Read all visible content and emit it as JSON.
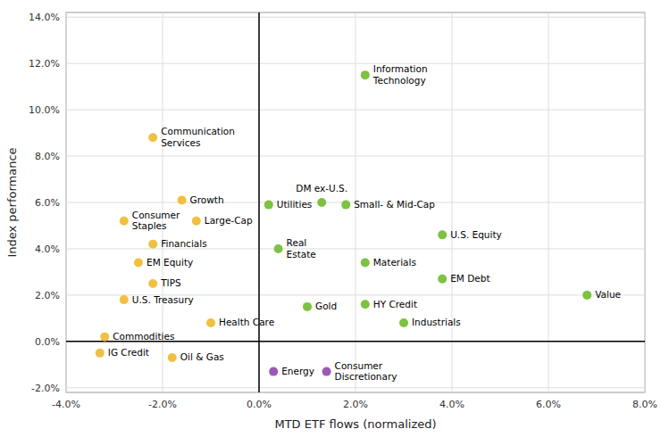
{
  "chart_data": {
    "type": "scatter",
    "xlabel": "MTD ETF flows (normalized)",
    "ylabel": "Index performance",
    "labels": [
      "Information\nTechnology",
      "Communication\nServices",
      "Utilities",
      "Small- & Mid-Cap",
      "Growth",
      "Large-Cap",
      "DM ex-U.S.",
      "Consumer\nStaples",
      "Financials",
      "U.S. Equity",
      "EM Equity",
      "Real\nEstate",
      "Materials",
      "TIPS",
      "U.S. Treasury",
      "EM Debt",
      "Value",
      "Gold",
      "HY Credit",
      "Commodities",
      "Health Care",
      "Industrials",
      "IG Credit",
      "Oil & Gas",
      "Energy",
      "Consumer\nDiscretionary"
    ],
    "x": [
      0.022,
      -0.022,
      0.002,
      0.018,
      -0.016,
      -0.013,
      0.013,
      -0.028,
      -0.022,
      0.038,
      -0.025,
      0.004,
      0.022,
      -0.022,
      -0.028,
      0.038,
      0.068,
      0.01,
      0.022,
      -0.032,
      -0.01,
      0.03,
      -0.033,
      -0.018,
      0.003,
      0.014
    ],
    "values": [
      0.115,
      0.088,
      0.059,
      0.059,
      0.061,
      0.052,
      0.06,
      0.052,
      0.042,
      0.046,
      0.034,
      0.04,
      0.034,
      0.025,
      0.018,
      0.027,
      0.02,
      0.015,
      0.016,
      0.002,
      0.008,
      0.008,
      -0.005,
      -0.007,
      -0.013,
      -0.013
    ],
    "colors": [
      "#7dc242",
      "#f0c040",
      "#7dc242",
      "#7dc242",
      "#f0c040",
      "#f0c040",
      "#7dc242",
      "#f0c040",
      "#f0c040",
      "#7dc242",
      "#f0c040",
      "#7dc242",
      "#7dc242",
      "#f0c040",
      "#f0c040",
      "#7dc242",
      "#7dc242",
      "#7dc242",
      "#7dc242",
      "#f0c040",
      "#f0c040",
      "#7dc242",
      "#f0c040",
      "#f0c040",
      "#9b59b6",
      "#9b59b6"
    ],
    "xlim": [
      -0.04,
      0.08
    ],
    "ylim": [
      -0.022,
      0.142
    ],
    "xticks": [
      {
        "value": -0.04,
        "label": "-4.0%"
      },
      {
        "value": -0.02,
        "label": "-2.0%"
      },
      {
        "value": 0.0,
        "label": "0.0%"
      },
      {
        "value": 0.02,
        "label": "2.0%"
      },
      {
        "value": 0.04,
        "label": "4.0%"
      },
      {
        "value": 0.06,
        "label": "6.0%"
      },
      {
        "value": 0.08,
        "label": "8.0%"
      }
    ],
    "yticks": [
      {
        "value": -0.02,
        "label": "-2.0%"
      },
      {
        "value": 0.0,
        "label": "0.0%"
      },
      {
        "value": 0.02,
        "label": "2.0%"
      },
      {
        "value": 0.04,
        "label": "4.0%"
      },
      {
        "value": 0.06,
        "label": "6.0%"
      },
      {
        "value": 0.08,
        "label": "8.0%"
      },
      {
        "value": 0.1,
        "label": "10.0%"
      },
      {
        "value": 0.12,
        "label": "12.0%"
      },
      {
        "value": 0.14,
        "label": "14.0%"
      }
    ],
    "grid": true
  }
}
